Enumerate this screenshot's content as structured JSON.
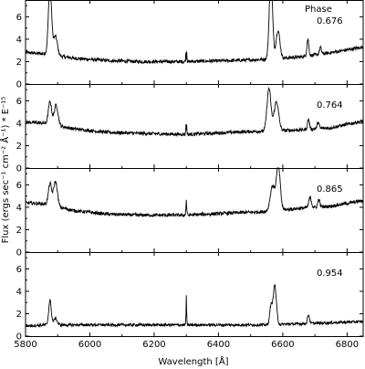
{
  "chart_data": {
    "type": "line",
    "title": "",
    "xlabel": "Wavelength [Å]",
    "ylabel": "Flux (ergs sec⁻¹ cm⁻² Å⁻¹) * E⁻¹⁵",
    "phase_heading": "Phase",
    "xlim": [
      5800,
      6850
    ],
    "ylim": [
      0,
      7.5
    ],
    "x_ticks": [
      5800,
      6000,
      6200,
      6400,
      6600,
      6800
    ],
    "y_ticks": [
      0,
      2,
      4,
      6
    ],
    "grid": false,
    "legend": "none",
    "line_color": "#000000",
    "panels": [
      {
        "phase": "0.676",
        "continuum": [
          [
            5800,
            2.8
          ],
          [
            5860,
            2.7
          ],
          [
            5950,
            2.3
          ],
          [
            6050,
            2.1
          ],
          [
            6150,
            2.0
          ],
          [
            6300,
            2.0
          ],
          [
            6450,
            2.1
          ],
          [
            6540,
            2.2
          ],
          [
            6650,
            2.4
          ],
          [
            6750,
            2.8
          ],
          [
            6850,
            3.3
          ]
        ],
        "lines": [
          [
            5876,
            6.0,
            5
          ],
          [
            5893,
            1.7,
            6
          ],
          [
            6300,
            1.2,
            1.5
          ],
          [
            6563,
            7.5,
            5
          ],
          [
            6585,
            2.5,
            6
          ],
          [
            6678,
            1.5,
            3
          ],
          [
            6717,
            0.6,
            3
          ]
        ],
        "noise": 0.15
      },
      {
        "phase": "0.764",
        "continuum": [
          [
            5800,
            4.1
          ],
          [
            5860,
            4.0
          ],
          [
            5950,
            3.5
          ],
          [
            6050,
            3.2
          ],
          [
            6150,
            3.1
          ],
          [
            6300,
            3.0
          ],
          [
            6450,
            3.2
          ],
          [
            6540,
            3.3
          ],
          [
            6650,
            3.4
          ],
          [
            6750,
            3.6
          ],
          [
            6850,
            4.2
          ]
        ],
        "lines": [
          [
            5876,
            2.0,
            5
          ],
          [
            5895,
            1.8,
            6
          ],
          [
            6300,
            1.0,
            1.5
          ],
          [
            6557,
            3.8,
            6
          ],
          [
            6580,
            2.6,
            7
          ],
          [
            6680,
            0.9,
            3
          ],
          [
            6710,
            0.6,
            3
          ]
        ],
        "noise": 0.15
      },
      {
        "phase": "0.865",
        "continuum": [
          [
            5800,
            4.4
          ],
          [
            5860,
            4.3
          ],
          [
            5950,
            3.7
          ],
          [
            6050,
            3.4
          ],
          [
            6150,
            3.3
          ],
          [
            6300,
            3.3
          ],
          [
            6450,
            3.5
          ],
          [
            6540,
            3.6
          ],
          [
            6650,
            3.9
          ],
          [
            6750,
            4.1
          ],
          [
            6850,
            4.6
          ]
        ],
        "lines": [
          [
            5876,
            1.9,
            5
          ],
          [
            5893,
            2.2,
            6
          ],
          [
            6300,
            1.0,
            1.5
          ],
          [
            6568,
            2.2,
            7
          ],
          [
            6586,
            4.0,
            6
          ],
          [
            6685,
            0.9,
            4
          ],
          [
            6712,
            0.7,
            3
          ]
        ],
        "noise": 0.15
      },
      {
        "phase": "0.954",
        "continuum": [
          [
            5800,
            0.9
          ],
          [
            5860,
            1.0
          ],
          [
            5950,
            1.0
          ],
          [
            6050,
            1.0
          ],
          [
            6150,
            1.0
          ],
          [
            6300,
            1.0
          ],
          [
            6450,
            1.0
          ],
          [
            6540,
            1.0
          ],
          [
            6650,
            1.1
          ],
          [
            6750,
            1.2
          ],
          [
            6850,
            1.3
          ]
        ],
        "lines": [
          [
            5876,
            2.2,
            4
          ],
          [
            5893,
            0.6,
            5
          ],
          [
            6300,
            1.6,
            1.2
          ],
          [
            6563,
            1.6,
            4
          ],
          [
            6575,
            3.5,
            5
          ],
          [
            6680,
            0.8,
            3
          ]
        ],
        "noise": 0.12
      }
    ]
  }
}
